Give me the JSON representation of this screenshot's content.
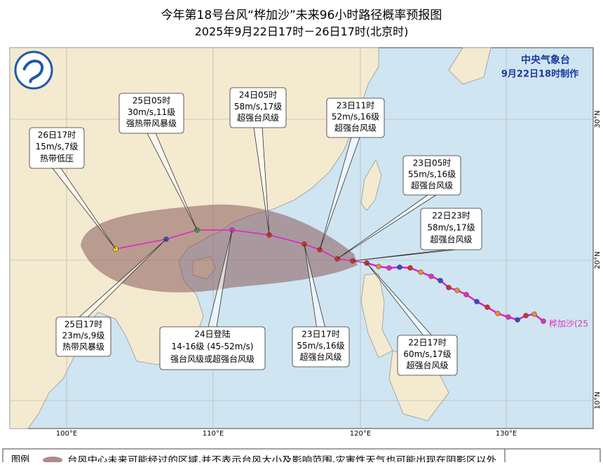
{
  "header": {
    "title": "今年第18号台风“桦加沙”未来96小时路径概率预报图",
    "subtitle": "2025年9月22日17时－26日17时(北京时)"
  },
  "agency": {
    "name": "中央气象台",
    "made": "9月22日18时制作"
  },
  "typhoon_name": "桦加沙(25",
  "callouts": [
    {
      "lines": [
        "26日17时",
        "15m/s,7级",
        "热带低压"
      ]
    },
    {
      "lines": [
        "25日05时",
        "30m/s,11级",
        "强热带风暴级"
      ]
    },
    {
      "lines": [
        "24日05时",
        "58m/s,17级",
        "超强台风级"
      ]
    },
    {
      "lines": [
        "23日11时",
        "52m/s,16级",
        "超强台风级"
      ]
    },
    {
      "lines": [
        "23日05时",
        "55m/s,16级",
        "超强台风级"
      ]
    },
    {
      "lines": [
        "22日23时",
        "58m/s,17级",
        "超强台风级"
      ]
    },
    {
      "lines": [
        "22日17时",
        "60m/s,17级",
        "超强台风级"
      ]
    },
    {
      "lines": [
        "23日17时",
        "55m/s,16级",
        "超强台风级"
      ]
    },
    {
      "lines": [
        "24日登陆",
        "14-16级 (45-52m/s)",
        "强台风级或超强台风级"
      ]
    },
    {
      "lines": [
        "25日17时",
        "23m/s,9级",
        "热带风暴级"
      ]
    }
  ],
  "lon_labels": [
    "100°E",
    "110°E",
    "120°E",
    "130°E"
  ],
  "lat_labels": [
    "30°N",
    "20°N",
    "10°N"
  ],
  "legend": {
    "title": "图例",
    "text": "台风中心未来可能经过的区域,并不表示台风大小及影响范围,灾害性天气也可能出现在阴影区以外"
  }
}
